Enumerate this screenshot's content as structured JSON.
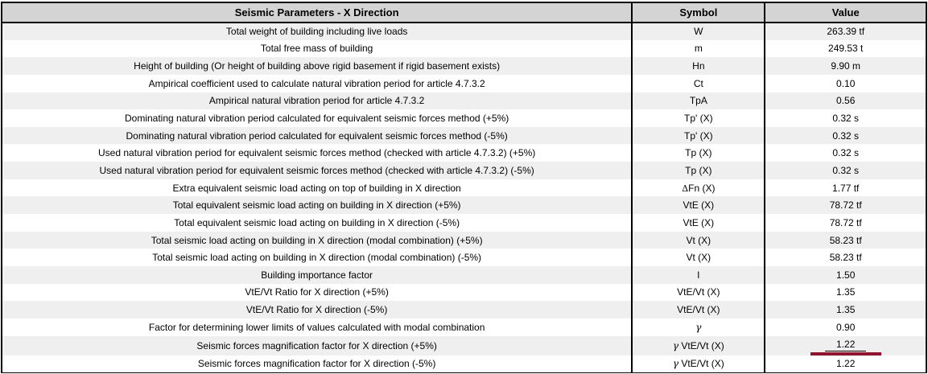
{
  "header": {
    "title": "Seismic Parameters - X Direction",
    "symbol_col": "Symbol",
    "value_col": "Value"
  },
  "colors": {
    "header_bg": "#d4d4d4",
    "row_alt_bg": "#efefef",
    "row_bg": "#ffffff",
    "border": "#000000",
    "highlight_bar": "#96122b"
  },
  "table": {
    "rows": [
      {
        "desc": "Total weight of building including live loads",
        "sym": "W",
        "val": "263.39 tf",
        "highlight": false
      },
      {
        "desc": "Total free mass of building",
        "sym": "m",
        "val": "249.53 t",
        "highlight": false
      },
      {
        "desc": "Height of building (Or height of building above rigid basement if rigid basement exists)",
        "sym": "Hn",
        "val": "9.90 m",
        "highlight": false
      },
      {
        "desc": "Ampirical coefficient used to calculate natural vibration period for article 4.7.3.2",
        "sym": "Ct",
        "val": "0.10",
        "highlight": false
      },
      {
        "desc": "Ampirical natural vibration period for article 4.7.3.2",
        "sym": "TpA",
        "val": "0.56",
        "highlight": false
      },
      {
        "desc": "Dominating natural vibration period calculated for equivalent seismic forces method (+5%)",
        "sym": "Tp' (X)",
        "val": "0.32 s",
        "highlight": false
      },
      {
        "desc": "Dominating natural vibration period calculated for equivalent seismic forces method (-5%)",
        "sym": "Tp' (X)",
        "val": "0.32 s",
        "highlight": false
      },
      {
        "desc": "Used natural vibration period for equivalent seismic forces method (checked with article 4.7.3.2) (+5%)",
        "sym": "Tp (X)",
        "val": "0.32 s",
        "highlight": false
      },
      {
        "desc": "Used natural vibration period for equivalent seismic forces method (checked with article 4.7.3.2) (-5%)",
        "sym": "Tp (X)",
        "val": "0.32 s",
        "highlight": false
      },
      {
        "desc": "Extra equivalent seismic load acting on top of building in X direction",
        "sym": "ΔFn (X)",
        "val": "1.77 tf",
        "highlight": false
      },
      {
        "desc": "Total equivalent seismic load acting on building in X direction (+5%)",
        "sym": "VtE (X)",
        "val": "78.72 tf",
        "highlight": false
      },
      {
        "desc": "Total equivalent seismic load acting on building in X direction (-5%)",
        "sym": "VtE (X)",
        "val": "78.72 tf",
        "highlight": false
      },
      {
        "desc": "Total seismic load acting on building in X direction (modal combination) (+5%)",
        "sym": "Vt (X)",
        "val": "58.23 tf",
        "highlight": false
      },
      {
        "desc": "Total seismic load acting on building in X direction (modal combination) (-5%)",
        "sym": "Vt (X)",
        "val": "58.23 tf",
        "highlight": false
      },
      {
        "desc": "Building importance factor",
        "sym": "I",
        "val": "1.50",
        "highlight": false
      },
      {
        "desc": "VtE/Vt Ratio for X direction (+5%)",
        "sym": "VtE/Vt (X)",
        "val": "1.35",
        "highlight": false
      },
      {
        "desc": "VtE/Vt Ratio for X direction (-5%)",
        "sym": "VtE/Vt (X)",
        "val": "1.35",
        "highlight": false
      },
      {
        "desc": "Factor for determining lower limits of values calculated with modal combination",
        "sym": "γ",
        "val": "0.90",
        "highlight": false
      },
      {
        "desc": "Seismic forces magnification factor for X direction (+5%)",
        "sym": "γ VtE/Vt (X)",
        "val": "1.22",
        "highlight": true
      },
      {
        "desc": "Seismic forces magnification factor for X direction (-5%)",
        "sym": "γ VtE/Vt (X)",
        "val": "1.22",
        "highlight": false
      }
    ]
  }
}
